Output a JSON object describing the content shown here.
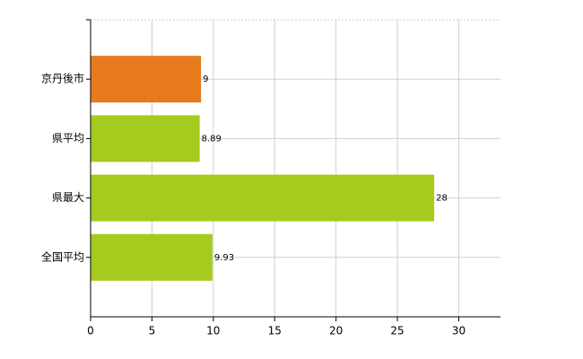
{
  "chart_data": {
    "type": "bar",
    "orientation": "horizontal",
    "categories": [
      "京丹後市",
      "県平均",
      "県最大",
      "全国平均"
    ],
    "values": [
      9,
      8.89,
      28,
      9.93
    ],
    "colors": [
      "#e87a1e",
      "#a6cb1f",
      "#a6cb1f",
      "#a6cb1f"
    ],
    "xlim": [
      0,
      33.4
    ],
    "xticks": [
      0,
      5,
      10,
      15,
      20,
      25,
      30
    ],
    "grid": true
  }
}
